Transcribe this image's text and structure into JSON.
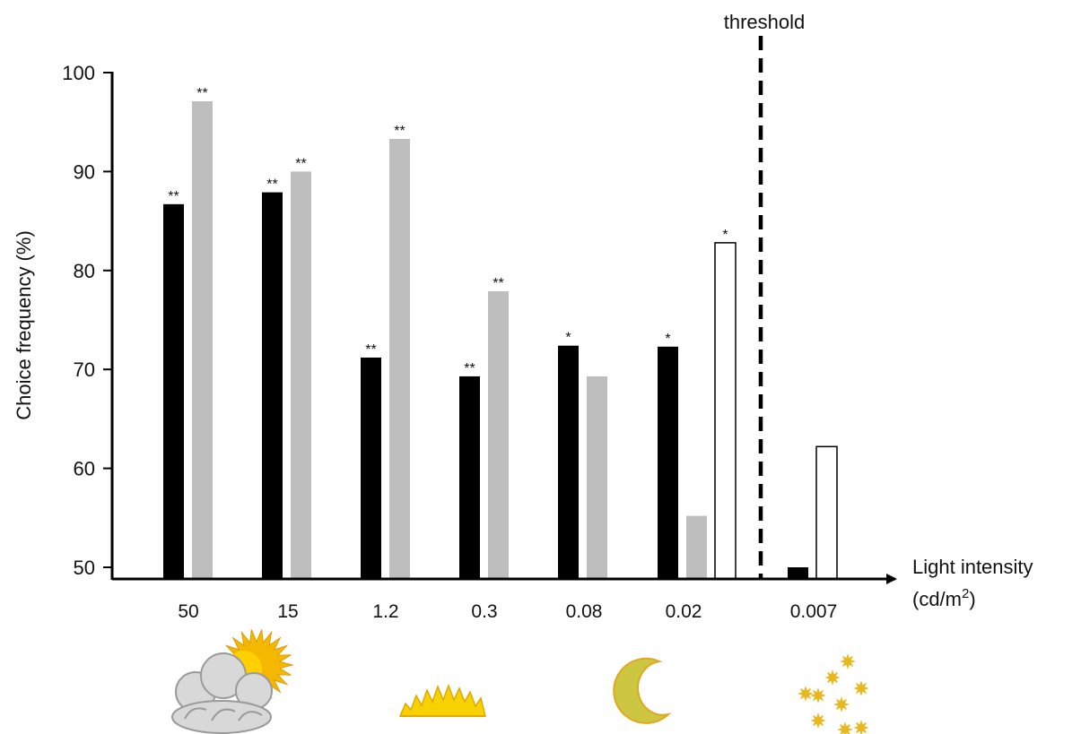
{
  "chart_data": {
    "type": "bar",
    "title": "",
    "ylabel": "Choice frequency (%)",
    "xlabel_line1": "Light intensity",
    "xlabel_unit_prefix": "(cd/m",
    "xlabel_unit_sup": "2",
    "xlabel_unit_suffix": ")",
    "threshold_label": "threshold",
    "ylim": [
      50,
      100
    ],
    "yticks": [
      "50",
      "60",
      "70",
      "80",
      "90",
      "100"
    ],
    "categories": [
      "50",
      "15",
      "1.2",
      "0.3",
      "0.08",
      "0.02",
      "0.007"
    ],
    "series": [
      {
        "fill": "#000000",
        "values": [
          86.7,
          87.9,
          71.2,
          69.3,
          72.4,
          72.3,
          50.0
        ],
        "significance": [
          "**",
          "**",
          "**",
          "**",
          "*",
          "*",
          ""
        ]
      },
      {
        "fill": "#bebebe",
        "values": [
          97.1,
          90.0,
          93.3,
          77.9,
          69.3,
          55.2,
          null
        ],
        "significance": [
          "**",
          "**",
          "**",
          "**",
          "",
          "",
          ""
        ]
      },
      {
        "fill": "#ffffff",
        "values": [
          null,
          null,
          null,
          null,
          null,
          82.8,
          62.2
        ],
        "significance": [
          "",
          "",
          "",
          "",
          "",
          "*",
          ""
        ]
      }
    ],
    "threshold_between": [
      "0.02",
      "0.007"
    ],
    "grid": false,
    "legend": "none"
  },
  "icons": [
    {
      "name": "cloud-sun-icon",
      "color": "#f5b800"
    },
    {
      "name": "sunrise-icon",
      "color": "#f5d000"
    },
    {
      "name": "crescent-moon-icon",
      "color": "#d4c640"
    },
    {
      "name": "stars-icon",
      "color": "#e8b820"
    }
  ]
}
